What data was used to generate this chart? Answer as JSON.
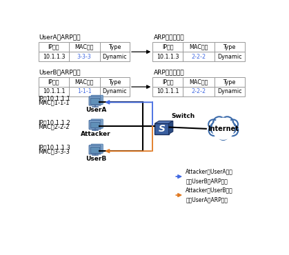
{
  "bg_color": "#ffffff",
  "table_border_color": "#999999",
  "blue_mac_color": "#4169E1",
  "orange_color": "#E07820",
  "blue_arrow_color": "#4169E1",
  "switch_blue": "#4a6fa5",
  "switch_dark": "#2a4a7f",
  "switch_light": "#6a8fc0",
  "userA_label": "UserA",
  "userB_label": "UserB",
  "attacker_label": "Attacker",
  "switch_label": "Switch",
  "internet_label": "Internet",
  "tableA_title": "UserA的ARP表项",
  "tableA_update_title": "ARP表项更新为",
  "tableB_title": "UserB的ARP表项",
  "tableB_update_title": "ARP表项更新为",
  "col_headers": [
    "IP地址",
    "MAC地址",
    "Type"
  ],
  "tableA_before_row": [
    "10.1.1.3",
    "3-3-3",
    "Dynamic"
  ],
  "tableA_after_row": [
    "10.1.1.3",
    "2-2-2",
    "Dynamic"
  ],
  "tableB_before_row": [
    "10.1.1.1",
    "1-1-1",
    "Dynamic"
  ],
  "tableB_after_row": [
    "10.1.1.1",
    "2-2-2",
    "Dynamic"
  ],
  "userA_ip": "IP：10.1.1.1",
  "userA_mac": "MAC：1-1-1",
  "attacker_ip": "IP：10.1.1.2",
  "attacker_mac": "MAC：2-2-2",
  "userB_ip": "IP：10.1.1.3",
  "userB_mac": "MAC：3-3-3",
  "legend1_line1": "Attacker向UserA发送",
  "legend1_line2": "伪造UserB的ARP报文",
  "legend2_line1": "Attacker向UserB发送",
  "legend2_line2": "伪造UserA的ARP报文"
}
